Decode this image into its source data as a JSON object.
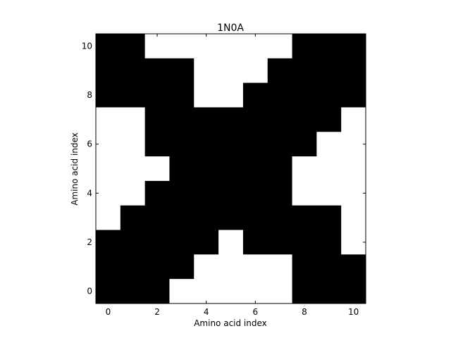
{
  "chart_data": {
    "type": "heatmap",
    "title": "1N0A",
    "xlabel": "Amino acid index",
    "ylabel": "Amino acid index",
    "xlim": [
      -0.5,
      10.5
    ],
    "ylim": [
      -0.5,
      10.5
    ],
    "x_ticks": [
      0,
      2,
      4,
      6,
      8,
      10
    ],
    "y_ticks": [
      0,
      2,
      4,
      6,
      8,
      10
    ],
    "grid": false,
    "colors": {
      "contact": "#000000",
      "no_contact": "#ffffff"
    },
    "matrix_rows_top_to_bottom": [
      [
        1,
        1,
        0,
        0,
        0,
        0,
        0,
        0,
        1,
        1,
        1
      ],
      [
        1,
        1,
        1,
        1,
        0,
        0,
        0,
        1,
        1,
        1,
        1
      ],
      [
        1,
        1,
        1,
        1,
        0,
        0,
        1,
        1,
        1,
        1,
        1
      ],
      [
        0,
        0,
        1,
        1,
        1,
        1,
        1,
        1,
        1,
        1,
        0
      ],
      [
        0,
        0,
        1,
        1,
        1,
        1,
        1,
        1,
        1,
        0,
        0
      ],
      [
        0,
        0,
        0,
        1,
        1,
        1,
        1,
        1,
        0,
        0,
        0
      ],
      [
        0,
        0,
        1,
        1,
        1,
        1,
        1,
        1,
        0,
        0,
        0
      ],
      [
        0,
        1,
        1,
        1,
        1,
        1,
        1,
        1,
        1,
        1,
        0
      ],
      [
        1,
        1,
        1,
        1,
        1,
        0,
        1,
        1,
        1,
        1,
        0
      ],
      [
        1,
        1,
        1,
        1,
        0,
        0,
        0,
        0,
        1,
        1,
        1
      ],
      [
        1,
        1,
        1,
        0,
        0,
        0,
        0,
        0,
        1,
        1,
        1
      ]
    ]
  }
}
